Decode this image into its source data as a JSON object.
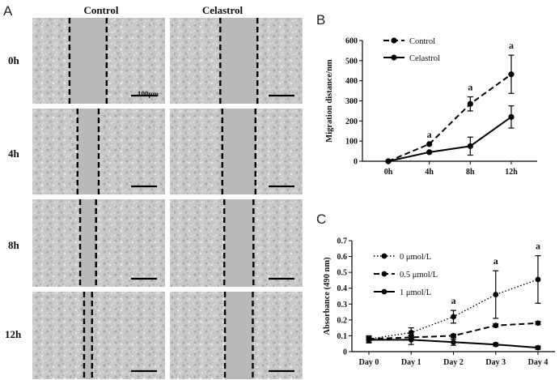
{
  "figure": {
    "panel_labels": {
      "a": "A",
      "b": "B",
      "c": "C"
    },
    "microscopy": {
      "columns": [
        "Control",
        "Celastrol"
      ],
      "rows": [
        "0h",
        "4h",
        "8h",
        "12h"
      ],
      "scale_bar_label": "100μm",
      "gap_fraction": {
        "Control": [
          0.28,
          0.16,
          0.12,
          0.06
        ],
        "Celastrol": [
          0.28,
          0.25,
          0.22,
          0.21
        ]
      }
    }
  },
  "chart_data": [
    {
      "panel": "B",
      "type": "line",
      "categories": [
        "0h",
        "4h",
        "8h",
        "12h"
      ],
      "series": [
        {
          "name": "Control",
          "style": "dashed",
          "marker": "circle",
          "values": [
            0,
            85,
            285,
            432
          ],
          "errors": [
            0,
            0,
            35,
            95
          ]
        },
        {
          "name": "Celastrol",
          "style": "solid",
          "marker": "circle",
          "values": [
            0,
            45,
            75,
            220
          ],
          "errors": [
            0,
            0,
            45,
            55
          ]
        }
      ],
      "significance": [
        {
          "category": "4h",
          "label": "a"
        },
        {
          "category": "8h",
          "label": "a"
        },
        {
          "category": "12h",
          "label": "a"
        }
      ],
      "ylabel": "Migration distance/nm",
      "xlabel": "",
      "ylim": [
        0,
        600
      ],
      "yticks": [
        0,
        100,
        200,
        300,
        400,
        500,
        600
      ],
      "legend": "top-left"
    },
    {
      "panel": "C",
      "type": "line",
      "categories": [
        "Day 0",
        "Day 1",
        "Day 2",
        "Day 3",
        "Day 4"
      ],
      "series": [
        {
          "name": "0 μmol/L",
          "style": "dotted",
          "marker": "circle",
          "values": [
            0.08,
            0.12,
            0.22,
            0.36,
            0.455
          ],
          "errors": [
            0.02,
            0.03,
            0.04,
            0.15,
            0.15
          ]
        },
        {
          "name": "0.5 μmol/L",
          "style": "dashed",
          "marker": "circle",
          "values": [
            0.08,
            0.09,
            0.1,
            0.165,
            0.18
          ],
          "errors": [
            0.01,
            0.01,
            0.01,
            0.01,
            0.01
          ]
        },
        {
          "name": "1 μmol/L",
          "style": "solid",
          "marker": "circle",
          "values": [
            0.075,
            0.075,
            0.06,
            0.045,
            0.025
          ],
          "errors": [
            0.02,
            0.03,
            0.02,
            0.01,
            0.01
          ]
        }
      ],
      "significance": [
        {
          "category": "Day 2",
          "label": "a"
        },
        {
          "category": "Day 3",
          "label": "a"
        },
        {
          "category": "Day 4",
          "label": "a"
        }
      ],
      "ylabel": "Absorbance (490 nm)",
      "xlabel": "",
      "ylim": [
        0,
        0.7
      ],
      "yticks": [
        0,
        0.1,
        0.2,
        0.3,
        0.4,
        0.5,
        0.6,
        0.7
      ],
      "legend": "top-left"
    }
  ]
}
